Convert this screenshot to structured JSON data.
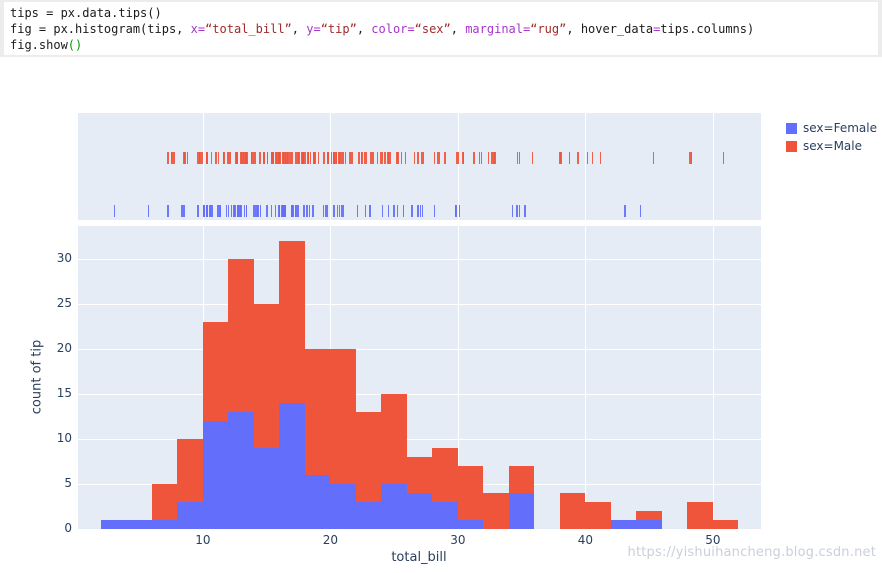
{
  "code": {
    "lines": [
      [
        {
          "t": "tips = px.data.tips()",
          "c": "plain"
        }
      ],
      [
        {
          "t": "fig = px.histogram(tips, ",
          "c": "plain"
        },
        {
          "t": "x=",
          "c": "kw"
        },
        {
          "t": "“total_bill”",
          "c": "str"
        },
        {
          "t": ", ",
          "c": "plain"
        },
        {
          "t": "y=",
          "c": "kw"
        },
        {
          "t": "“tip”",
          "c": "str"
        },
        {
          "t": ", ",
          "c": "plain"
        },
        {
          "t": "color=",
          "c": "kw"
        },
        {
          "t": "“sex”",
          "c": "str"
        },
        {
          "t": ", ",
          "c": "plain"
        },
        {
          "t": "marginal=",
          "c": "kw"
        },
        {
          "t": "“rug”",
          "c": "str"
        },
        {
          "t": ", ",
          "c": "plain"
        },
        {
          "t": "hover_data",
          "c": "plain"
        },
        {
          "t": "=",
          "c": "kw"
        },
        {
          "t": "tips.columns)",
          "c": "plain"
        }
      ],
      [
        {
          "t": "fig.show",
          "c": "plain"
        },
        {
          "t": "()",
          "c": "paren"
        }
      ]
    ]
  },
  "chart_data": {
    "type": "bar",
    "subtype": "stacked-histogram-with-marginal-rug",
    "title": "",
    "xlabel": "total_bill",
    "ylabel": "count of tip",
    "x_range": [
      0.2,
      53.77
    ],
    "y_range": [
      0,
      33.7
    ],
    "x_ticks": [
      10,
      20,
      30,
      40,
      50
    ],
    "y_ticks": [
      0,
      5,
      10,
      15,
      20,
      25,
      30
    ],
    "grid": true,
    "legend_position": "top-right",
    "bin_start": 2,
    "bin_width": 2,
    "bin_edges": [
      2,
      4,
      6,
      8,
      10,
      12,
      14,
      16,
      18,
      20,
      22,
      24,
      26,
      28,
      30,
      32,
      34,
      36,
      38,
      40,
      42,
      44,
      46,
      48,
      50,
      52
    ],
    "series": [
      {
        "name": "sex=Female",
        "color": "#636EFA",
        "counts": [
          1,
          1,
          1,
          3,
          12,
          13,
          9,
          14,
          6,
          5,
          3,
          5,
          4,
          3,
          1,
          0,
          4,
          0,
          0,
          0,
          1,
          1,
          0,
          0,
          0
        ]
      },
      {
        "name": "sex=Male",
        "color": "#EF553B",
        "counts": [
          0,
          0,
          4,
          7,
          11,
          17,
          16,
          18,
          14,
          15,
          10,
          10,
          4,
          6,
          6,
          4,
          3,
          0,
          4,
          3,
          0,
          1,
          0,
          3,
          1
        ]
      }
    ],
    "rug": {
      "female_values": [
        3.07,
        5.75,
        7.25,
        8.35,
        8.51,
        9.6,
        10.07,
        10.09,
        10.33,
        10.33,
        10.51,
        10.59,
        10.63,
        10.77,
        11.17,
        11.35,
        11.38,
        11.87,
        12.02,
        12.26,
        12.43,
        12.46,
        12.48,
        12.54,
        12.74,
        12.76,
        12.9,
        13.0,
        13.28,
        13.42,
        13.42,
        14.0,
        14.15,
        14.26,
        14.31,
        14.52,
        15.01,
        15.38,
        15.69,
        15.98,
        16.0,
        16.21,
        16.27,
        16.32,
        16.4,
        16.43,
        16.47,
        16.93,
        16.97,
        17.07,
        17.26,
        17.31,
        17.47,
        17.92,
        18.15,
        18.35,
        18.64,
        19.44,
        19.65,
        19.77,
        20.29,
        20.53,
        20.69,
        20.9,
        21.01,
        22.12,
        22.75,
        23.1,
        24.06,
        24.55,
        25.0,
        25.28,
        25.71,
        26.41,
        26.86,
        27.05,
        27.2,
        28.17,
        29.8,
        29.85,
        30.14,
        34.3,
        34.63,
        34.83,
        35.26,
        43.11,
        44.3
      ],
      "male_values": [
        7.25,
        7.51,
        7.56,
        7.74,
        8.52,
        8.58,
        8.77,
        9.55,
        9.68,
        9.78,
        9.94,
        10.27,
        10.29,
        10.34,
        10.34,
        10.65,
        11.02,
        11.24,
        11.59,
        11.61,
        11.69,
        11.95,
        12.03,
        12.16,
        12.6,
        12.66,
        12.69,
        13.0,
        13.03,
        13.13,
        13.16,
        13.27,
        13.37,
        13.39,
        13.42,
        13.51,
        13.81,
        13.81,
        13.94,
        14.07,
        14.48,
        14.73,
        14.78,
        14.83,
        15.04,
        15.06,
        15.36,
        15.42,
        15.48,
        15.53,
        15.69,
        15.77,
        15.81,
        15.95,
        15.98,
        16.04,
        16.29,
        16.31,
        16.45,
        16.49,
        16.58,
        16.66,
        16.82,
        16.99,
        17.29,
        17.46,
        17.51,
        17.59,
        17.78,
        17.81,
        17.82,
        17.89,
        17.92,
        18.04,
        18.24,
        18.26,
        18.28,
        18.29,
        18.29,
        18.43,
        18.69,
        18.71,
        18.78,
        19.08,
        19.49,
        19.81,
        19.82,
        20.08,
        20.23,
        20.27,
        20.29,
        20.45,
        20.49,
        20.65,
        20.69,
        20.76,
        20.92,
        21.01,
        21.16,
        21.5,
        21.58,
        21.7,
        22.23,
        22.42,
        22.49,
        22.67,
        22.76,
        22.82,
        23.17,
        23.33,
        23.68,
        23.95,
        24.01,
        24.08,
        24.27,
        24.52,
        24.59,
        24.71,
        25.21,
        25.29,
        25.56,
        25.89,
        26.59,
        26.88,
        27.18,
        27.28,
        28.15,
        28.44,
        28.55,
        28.97,
        29.03,
        29.93,
        30.06,
        30.4,
        30.46,
        31.27,
        31.71,
        31.85,
        32.4,
        32.68,
        32.83,
        32.9,
        34.65,
        34.81,
        35.83,
        38.01,
        38.07,
        38.73,
        39.42,
        40.17,
        40.55,
        41.19,
        45.35,
        48.17,
        48.27,
        48.33,
        50.81
      ]
    },
    "colors": {
      "plot_bg": "#E5ECF6",
      "grid": "#ffffff",
      "axis_text": "#2a3f5f",
      "female": "#636EFA",
      "male": "#EF553B"
    }
  },
  "watermark": "https://yishuihancheng.blog.csdn.net"
}
